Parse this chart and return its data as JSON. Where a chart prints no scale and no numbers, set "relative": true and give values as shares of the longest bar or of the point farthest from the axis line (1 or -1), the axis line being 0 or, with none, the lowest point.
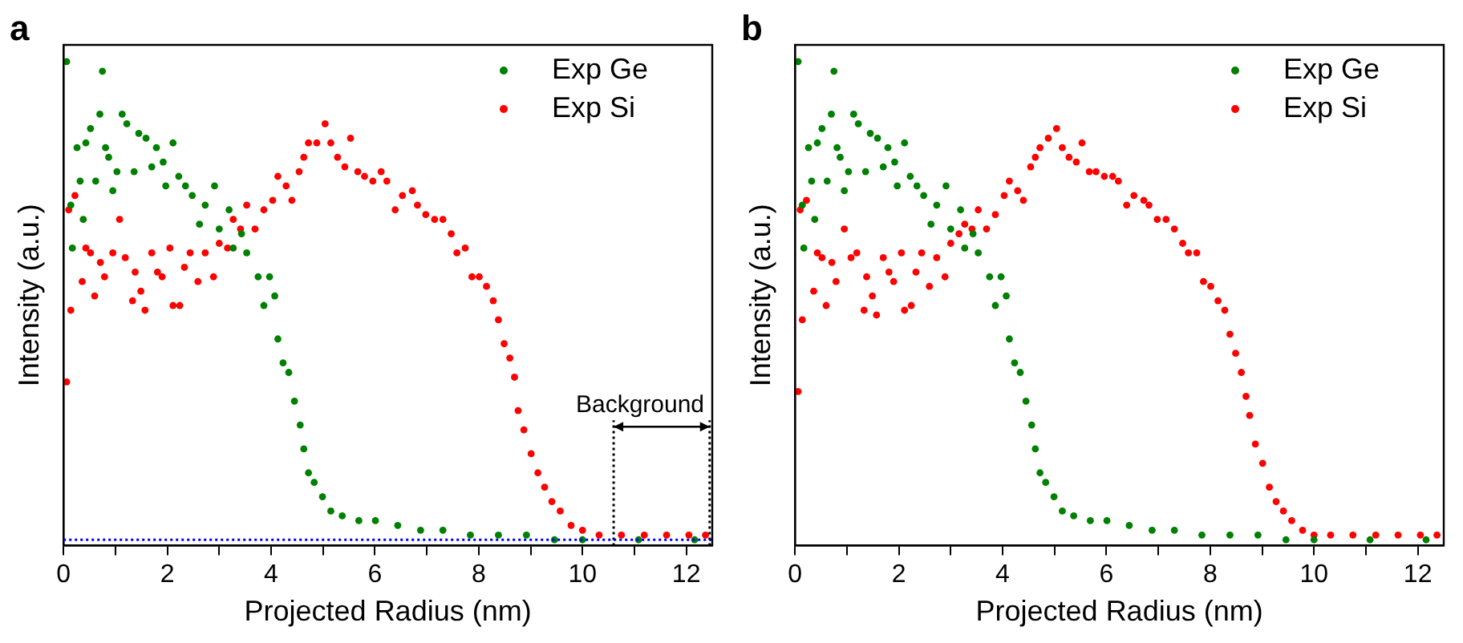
{
  "chart_data": [
    {
      "type": "scatter",
      "title": "a",
      "xlabel": "Projected Radius (nm)",
      "ylabel": "Intensity (a.u.)",
      "relative": true,
      "xlim": [
        0,
        12.5
      ],
      "xticks": [
        0,
        {
          "value": 1,
          "label": null
        },
        2,
        {
          "value": 3,
          "label": null
        },
        4,
        {
          "value": 5,
          "label": null
        },
        6,
        {
          "value": 7,
          "label": null
        },
        8,
        {
          "value": 9,
          "label": null
        },
        10,
        {
          "value": 11,
          "label": null
        },
        12
      ],
      "legend": "top right",
      "marker": "circle",
      "grid": false,
      "ref_lines": [
        {
          "axis": "y",
          "value": 0,
          "color": "#0000ff",
          "line_style": "dotted"
        },
        {
          "axis": "x",
          "value": 10.6,
          "color": "#000000",
          "line_style": "dotted"
        },
        {
          "axis": "x",
          "value": 12.45,
          "color": "#000000",
          "line_style": "dotted"
        }
      ],
      "annotations": [
        "Background"
      ],
      "series": [
        {
          "name": "Exp Ge",
          "color": "#008000",
          "x": [
            0.06,
            0.75,
            0.14,
            0.17,
            0.26,
            0.43,
            0.32,
            0.38,
            0.52,
            0.62,
            0.7,
            0.81,
            0.87,
            0.95,
            1.03,
            1.13,
            1.22,
            1.36,
            1.45,
            1.59,
            1.7,
            1.79,
            1.92,
            1.97,
            2.11,
            2.22,
            2.35,
            2.48,
            2.62,
            2.73,
            2.91,
            3.0,
            3.19,
            3.27,
            3.43,
            3.53,
            3.75,
            3.86,
            3.97,
            4.07,
            4.13,
            4.23,
            4.34,
            4.45,
            4.56,
            4.63,
            4.72,
            4.83,
            4.99,
            5.15,
            5.37,
            5.69,
            6.01,
            6.44,
            6.88,
            7.31,
            7.84,
            8.38,
            8.92,
            9.46,
            10.0,
            11.08,
            12.16
          ],
          "values": [
            1.0,
            0.98,
            0.7,
            0.61,
            0.82,
            0.83,
            0.75,
            0.67,
            0.86,
            0.75,
            0.89,
            0.82,
            0.8,
            0.73,
            0.77,
            0.89,
            0.87,
            0.77,
            0.85,
            0.84,
            0.78,
            0.82,
            0.79,
            0.74,
            0.83,
            0.76,
            0.74,
            0.72,
            0.66,
            0.7,
            0.74,
            0.65,
            0.69,
            0.61,
            0.64,
            0.6,
            0.55,
            0.49,
            0.55,
            0.51,
            0.42,
            0.37,
            0.35,
            0.29,
            0.24,
            0.19,
            0.14,
            0.12,
            0.09,
            0.06,
            0.05,
            0.04,
            0.04,
            0.03,
            0.02,
            0.02,
            0.01,
            0.01,
            0.01,
            0.0,
            0.0,
            0.0,
            0.0
          ]
        },
        {
          "name": "Exp Si",
          "color": "#ff0000",
          "x": [
            0.06,
            0.14,
            0.1,
            0.22,
            0.36,
            0.43,
            0.52,
            0.6,
            0.71,
            0.79,
            0.95,
            1.08,
            1.19,
            1.33,
            1.38,
            1.49,
            1.57,
            1.7,
            1.81,
            1.9,
            2.05,
            2.11,
            2.24,
            2.33,
            2.44,
            2.59,
            2.73,
            2.89,
            3.0,
            3.16,
            3.27,
            3.41,
            3.53,
            3.69,
            3.86,
            4.03,
            4.13,
            4.29,
            4.4,
            4.54,
            4.63,
            4.72,
            4.88,
            5.04,
            5.15,
            5.28,
            5.42,
            5.53,
            5.67,
            5.8,
            5.96,
            6.12,
            6.23,
            6.39,
            6.53,
            6.72,
            6.82,
            6.98,
            7.15,
            7.31,
            7.47,
            7.58,
            7.74,
            7.87,
            8.01,
            8.15,
            8.28,
            8.38,
            8.49,
            8.6,
            8.69,
            8.76,
            8.87,
            9.01,
            9.14,
            9.27,
            9.41,
            9.57,
            9.78,
            10.0,
            10.32,
            10.75,
            11.19,
            11.62,
            12.05,
            12.37
          ],
          "values": [
            0.33,
            0.48,
            0.69,
            0.72,
            0.54,
            0.61,
            0.6,
            0.51,
            0.58,
            0.55,
            0.6,
            0.67,
            0.59,
            0.5,
            0.56,
            0.52,
            0.48,
            0.6,
            0.56,
            0.55,
            0.61,
            0.49,
            0.49,
            0.57,
            0.6,
            0.54,
            0.6,
            0.55,
            0.62,
            0.61,
            0.67,
            0.65,
            0.7,
            0.65,
            0.69,
            0.71,
            0.76,
            0.74,
            0.71,
            0.77,
            0.8,
            0.83,
            0.83,
            0.87,
            0.83,
            0.8,
            0.78,
            0.84,
            0.77,
            0.76,
            0.75,
            0.77,
            0.75,
            0.69,
            0.72,
            0.73,
            0.7,
            0.68,
            0.67,
            0.67,
            0.64,
            0.6,
            0.61,
            0.55,
            0.55,
            0.53,
            0.5,
            0.46,
            0.41,
            0.38,
            0.34,
            0.27,
            0.23,
            0.18,
            0.14,
            0.11,
            0.08,
            0.06,
            0.03,
            0.02,
            0.01,
            0.01,
            0.01,
            0.01,
            0.01,
            0.01
          ]
        }
      ]
    },
    {
      "type": "scatter",
      "title": "b",
      "xlabel": "Projected Radius (nm)",
      "ylabel": "Intensity (a.u.)",
      "relative": true,
      "xlim": [
        0,
        12.5
      ],
      "xticks": [
        0,
        {
          "value": 1,
          "label": null
        },
        2,
        {
          "value": 3,
          "label": null
        },
        4,
        {
          "value": 5,
          "label": null
        },
        6,
        {
          "value": 7,
          "label": null
        },
        8,
        {
          "value": 9,
          "label": null
        },
        10,
        {
          "value": 11,
          "label": null
        },
        12
      ],
      "legend": "top right",
      "marker": "circle",
      "grid": false,
      "series": [
        {
          "name": "Exp Ge",
          "color": "#008000",
          "x": [
            0.06,
            0.75,
            0.14,
            0.17,
            0.26,
            0.43,
            0.32,
            0.38,
            0.52,
            0.62,
            0.7,
            0.81,
            0.87,
            0.95,
            1.03,
            1.13,
            1.22,
            1.36,
            1.45,
            1.59,
            1.7,
            1.79,
            1.92,
            1.97,
            2.11,
            2.22,
            2.35,
            2.48,
            2.62,
            2.73,
            2.91,
            3.0,
            3.19,
            3.27,
            3.43,
            3.53,
            3.75,
            3.86,
            3.97,
            4.07,
            4.13,
            4.23,
            4.34,
            4.45,
            4.56,
            4.63,
            4.72,
            4.83,
            4.99,
            5.15,
            5.37,
            5.69,
            6.01,
            6.44,
            6.88,
            7.31,
            7.84,
            8.38,
            8.92,
            9.46,
            10.0,
            11.08,
            12.16
          ],
          "values": [
            1.0,
            0.98,
            0.7,
            0.61,
            0.82,
            0.83,
            0.75,
            0.67,
            0.86,
            0.75,
            0.89,
            0.82,
            0.8,
            0.73,
            0.77,
            0.89,
            0.87,
            0.77,
            0.85,
            0.84,
            0.78,
            0.82,
            0.79,
            0.74,
            0.83,
            0.76,
            0.74,
            0.72,
            0.66,
            0.7,
            0.74,
            0.65,
            0.69,
            0.61,
            0.64,
            0.6,
            0.55,
            0.49,
            0.55,
            0.51,
            0.42,
            0.37,
            0.35,
            0.29,
            0.24,
            0.19,
            0.14,
            0.12,
            0.09,
            0.06,
            0.05,
            0.04,
            0.04,
            0.03,
            0.02,
            0.02,
            0.01,
            0.01,
            0.01,
            0.0,
            0.0,
            0.0,
            0.0
          ]
        },
        {
          "name": "Exp Si",
          "color": "#ff0000",
          "x": [
            0.06,
            0.14,
            0.1,
            0.22,
            0.36,
            0.43,
            0.52,
            0.6,
            0.71,
            0.79,
            0.95,
            1.08,
            1.19,
            1.33,
            1.38,
            1.49,
            1.57,
            1.7,
            1.81,
            1.9,
            2.05,
            2.11,
            2.24,
            2.33,
            2.44,
            2.59,
            2.73,
            2.89,
            3.0,
            3.16,
            3.27,
            3.41,
            3.53,
            3.69,
            3.86,
            4.03,
            4.13,
            4.29,
            4.4,
            4.54,
            4.63,
            4.72,
            4.88,
            5.04,
            5.15,
            5.28,
            5.42,
            5.53,
            5.67,
            5.8,
            5.96,
            6.12,
            6.23,
            6.39,
            6.53,
            6.72,
            6.82,
            6.98,
            7.15,
            7.31,
            7.47,
            7.58,
            7.74,
            7.87,
            8.01,
            8.15,
            8.28,
            8.38,
            8.49,
            8.6,
            8.69,
            8.76,
            8.87,
            9.01,
            9.14,
            9.27,
            9.41,
            9.57,
            9.78,
            10.0,
            10.32,
            10.75,
            11.19,
            11.62,
            12.05,
            12.37
          ],
          "values": [
            0.31,
            0.46,
            0.69,
            0.71,
            0.52,
            0.6,
            0.59,
            0.49,
            0.58,
            0.54,
            0.65,
            0.59,
            0.6,
            0.48,
            0.55,
            0.51,
            0.47,
            0.59,
            0.56,
            0.54,
            0.6,
            0.48,
            0.49,
            0.56,
            0.6,
            0.53,
            0.59,
            0.55,
            0.62,
            0.64,
            0.66,
            0.65,
            0.69,
            0.65,
            0.68,
            0.72,
            0.75,
            0.73,
            0.71,
            0.78,
            0.8,
            0.82,
            0.84,
            0.86,
            0.82,
            0.8,
            0.79,
            0.83,
            0.77,
            0.77,
            0.76,
            0.76,
            0.75,
            0.7,
            0.72,
            0.71,
            0.7,
            0.67,
            0.67,
            0.65,
            0.62,
            0.6,
            0.6,
            0.54,
            0.53,
            0.5,
            0.48,
            0.43,
            0.39,
            0.35,
            0.3,
            0.26,
            0.2,
            0.16,
            0.11,
            0.08,
            0.06,
            0.04,
            0.02,
            0.01,
            0.01,
            0.01,
            0.01,
            0.01,
            0.01,
            0.01
          ]
        }
      ]
    }
  ]
}
